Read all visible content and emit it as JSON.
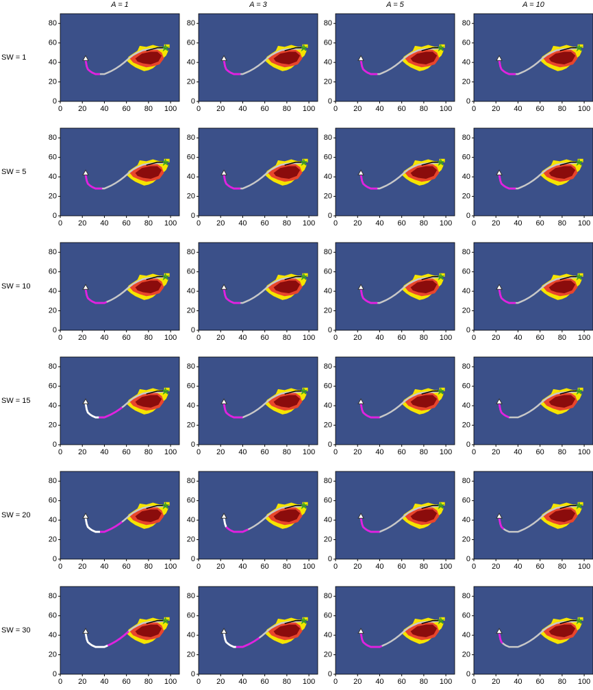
{
  "chart_data": {
    "type": "map-grid",
    "columns": [
      "A = 1",
      "A = 3",
      "A = 5",
      "A = 10"
    ],
    "rows": [
      "SW = 1",
      "SW = 5",
      "SW = 10",
      "SW = 15",
      "SW = 20",
      "SW = 30"
    ],
    "xlim": [
      0,
      108
    ],
    "ylim": [
      0,
      90
    ],
    "xticks": [
      0,
      20,
      40,
      60,
      80,
      100
    ],
    "yticks": [
      0,
      20,
      40,
      60,
      80
    ],
    "background": "#3b5089",
    "route": {
      "color": "#c8c8c8",
      "x": [
        23,
        23.5,
        24,
        25,
        27,
        29,
        32,
        36,
        40,
        43,
        46,
        50,
        54,
        58,
        62,
        66,
        70,
        75,
        80,
        85,
        90,
        96
      ],
      "y": [
        42,
        39,
        36,
        33,
        31,
        29.5,
        28,
        28,
        28,
        29.5,
        31,
        33.5,
        36.5,
        40,
        44,
        47.5,
        50,
        52.5,
        53.5,
        54,
        54,
        55
      ]
    },
    "fire": [
      {
        "color": "#f5e400",
        "x": [
          60,
          62,
          66,
          70,
          72,
          78,
          84,
          90,
          95,
          98,
          96,
          92,
          88,
          84,
          80,
          76,
          72,
          68,
          64
        ],
        "y": [
          42,
          46,
          49,
          52,
          57,
          56,
          58,
          56,
          56,
          52,
          47,
          43,
          38,
          34,
          32,
          31,
          33,
          35,
          38
        ]
      },
      {
        "color": "#e8452c",
        "x": [
          63,
          70,
          76,
          82,
          88,
          92,
          94,
          90,
          84,
          78,
          72,
          66
        ],
        "y": [
          44,
          50,
          53,
          54,
          53,
          50,
          44,
          38,
          36,
          35,
          37,
          40
        ]
      },
      {
        "color": "#8b0c0c",
        "x": [
          68,
          74,
          82,
          88,
          92,
          89,
          82,
          75,
          70
        ],
        "y": [
          44,
          49,
          51,
          51,
          47,
          41,
          38,
          39,
          41
        ]
      }
    ],
    "panels": [
      {
        "magenta": [
          23,
          36
        ]
      },
      {
        "magenta": [
          23,
          38
        ]
      },
      {
        "magenta": [
          23,
          38
        ]
      },
      {
        "magenta": [
          23,
          38
        ]
      },
      {
        "magenta": [
          23,
          38
        ]
      },
      {
        "magenta": [
          23,
          38
        ]
      },
      {
        "magenta": [
          23,
          38
        ]
      },
      {
        "magenta": [
          23,
          38
        ]
      },
      {
        "magenta": [
          23,
          42
        ]
      },
      {
        "magenta": [
          23,
          38
        ]
      },
      {
        "magenta": [
          23,
          38
        ]
      },
      {
        "magenta": [
          23,
          38
        ]
      },
      {
        "white": [
          23,
          35
        ],
        "magenta": [
          35,
          56
        ]
      },
      {
        "magenta": [
          23,
          40
        ]
      },
      {
        "magenta": [
          23,
          40
        ]
      },
      {
        "magenta": [
          23,
          32
        ]
      },
      {
        "white": [
          23,
          36
        ],
        "magenta": [
          36,
          56
        ]
      },
      {
        "white": [
          23,
          25
        ],
        "magenta": [
          25,
          45
        ]
      },
      {
        "magenta": [
          23,
          40
        ]
      },
      {
        "magenta": [
          23,
          27
        ]
      },
      {
        "white": [
          23,
          43
        ],
        "magenta": [
          43,
          62
        ]
      },
      {
        "white": [
          23,
          34
        ],
        "magenta": [
          34,
          55
        ]
      },
      {
        "magenta": [
          23,
          42
        ]
      },
      {
        "magenta": [
          23,
          26
        ]
      }
    ]
  }
}
